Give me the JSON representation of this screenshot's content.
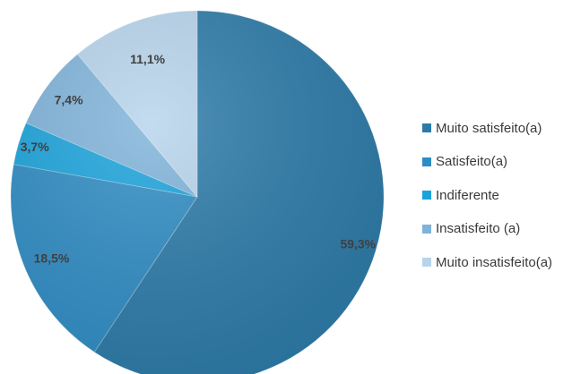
{
  "chart_data": {
    "type": "pie",
    "categories": [
      "Muito satisfeito(a)",
      "Satisfeito(a)",
      "Indiferente",
      "Insatisfeito (a)",
      "Muito insatisfeito(a)"
    ],
    "values": [
      59.3,
      18.5,
      3.7,
      7.4,
      11.1
    ],
    "labels": [
      "59,3%",
      "18,5%",
      "3,7%",
      "7,4%",
      "11,1%"
    ],
    "colors": [
      "#2b7aa8",
      "#2e8cc4",
      "#1aa3dc",
      "#7fb3da",
      "#b7d4ec"
    ],
    "legend_position": "right"
  }
}
